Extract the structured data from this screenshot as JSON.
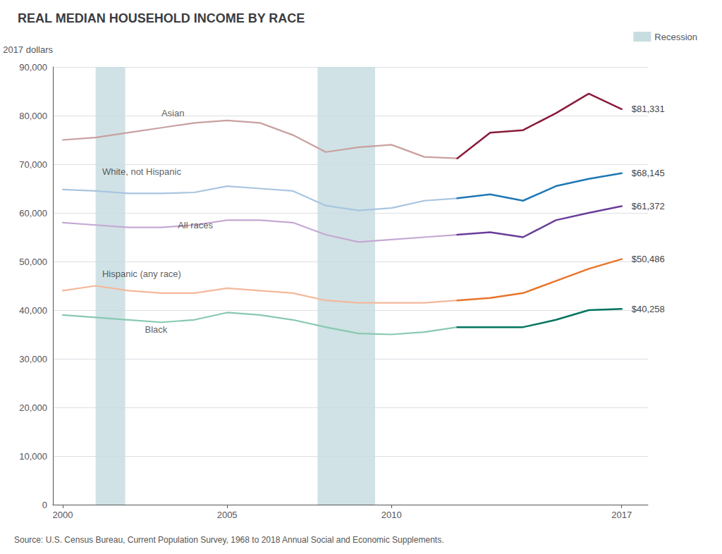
{
  "chart_data": {
    "type": "line",
    "title": "REAL MEDIAN HOUSEHOLD INCOME BY RACE",
    "ylabel": "2017 dollars",
    "source": "Source: U.S. Census Bureau, Current Population Survey, 1968 to 2018 Annual Social and Economic Supplements.",
    "xlim": [
      1999.7,
      2017.8
    ],
    "xticks": [
      2000,
      2005,
      2010,
      2017
    ],
    "ylim": [
      0,
      90000
    ],
    "yticks": [
      0,
      {
        "value": 10000,
        "label": "10,000"
      },
      {
        "value": 20000,
        "label": "20,000"
      },
      {
        "value": 30000,
        "label": "30,000"
      },
      {
        "value": 40000,
        "label": "40,000"
      },
      {
        "value": 50000,
        "label": "50,000"
      },
      {
        "value": 60000,
        "label": "60,000"
      },
      {
        "value": 70000,
        "label": "70,000"
      },
      {
        "value": 80000,
        "label": "80,000"
      },
      {
        "value": 90000,
        "label": "90,000"
      }
    ],
    "grid": true,
    "legend": "upper right",
    "shaded": {
      "label": "Recession",
      "color": "#c8dde0",
      "ranges": [
        [
          2001.0,
          2001.9
        ],
        [
          2007.75,
          2009.5
        ]
      ]
    },
    "series": [
      {
        "name": "Asian",
        "name_x": 2003.0,
        "name_y": 80500,
        "segments": [
          {
            "color": "#c9a0a0",
            "x": [
              2000,
              2001,
              2002,
              2003,
              2004,
              2005,
              2006,
              2007,
              2008,
              2009,
              2010,
              2011,
              2012
            ],
            "values": [
              75000,
              75500,
              76500,
              77500,
              78500,
              79000,
              78500,
              76000,
              72500,
              73500,
              74000,
              71500,
              71200
            ]
          },
          {
            "color": "#8b1a3a",
            "x": [
              2012,
              2013,
              2014,
              2015,
              2016,
              2017
            ],
            "values": [
              71200,
              76500,
              77000,
              80500,
              84500,
              81331
            ],
            "value_labels": [
              null,
              null,
              null,
              null,
              null,
              "$81,331"
            ]
          }
        ]
      },
      {
        "name": "White, not Hispanic",
        "name_x": 2001.2,
        "name_y": 68500,
        "segments": [
          {
            "color": "#a8c5e0",
            "x": [
              2000,
              2001,
              2002,
              2003,
              2004,
              2005,
              2006,
              2007,
              2008,
              2009,
              2010,
              2011,
              2012
            ],
            "values": [
              64800,
              64500,
              64000,
              64000,
              64200,
              65500,
              65000,
              64500,
              61500,
              60500,
              61000,
              62500,
              63000
            ]
          },
          {
            "color": "#1f78b4",
            "x": [
              2012,
              2013,
              2014,
              2015,
              2016,
              2017
            ],
            "values": [
              63000,
              63800,
              62500,
              65500,
              67000,
              68145
            ],
            "value_labels": [
              null,
              null,
              null,
              null,
              null,
              "$68,145"
            ]
          }
        ]
      },
      {
        "name": "All races",
        "name_x": 2003.5,
        "name_y": 57500,
        "segments": [
          {
            "color": "#c5a8d4",
            "x": [
              2000,
              2001,
              2002,
              2003,
              2004,
              2005,
              2006,
              2007,
              2008,
              2009,
              2010,
              2011,
              2012
            ],
            "values": [
              58000,
              57500,
              57000,
              57000,
              57500,
              58500,
              58500,
              58000,
              55500,
              54000,
              54500,
              55000,
              55500
            ]
          },
          {
            "color": "#6a3d9a",
            "x": [
              2012,
              2013,
              2014,
              2015,
              2016,
              2017
            ],
            "values": [
              55500,
              56000,
              55000,
              58500,
              60000,
              61372
            ],
            "value_labels": [
              null,
              null,
              null,
              null,
              null,
              "$61,372"
            ]
          }
        ]
      },
      {
        "name": "Hispanic (any race)",
        "name_x": 2001.2,
        "name_y": 47500,
        "segments": [
          {
            "color": "#f4b89a",
            "x": [
              2000,
              2001,
              2002,
              2003,
              2004,
              2005,
              2006,
              2007,
              2008,
              2009,
              2010,
              2011,
              2012
            ],
            "values": [
              44000,
              45000,
              44000,
              43500,
              43500,
              44500,
              44000,
              43500,
              42000,
              41500,
              41500,
              41500,
              42000
            ]
          },
          {
            "color": "#e8742a",
            "x": [
              2012,
              2013,
              2014,
              2015,
              2016,
              2017
            ],
            "values": [
              42000,
              42500,
              43500,
              46000,
              48500,
              50486
            ],
            "value_labels": [
              null,
              null,
              null,
              null,
              null,
              "$50,486"
            ]
          }
        ]
      },
      {
        "name": "Black",
        "name_x": 2002.5,
        "name_y": 36000,
        "segments": [
          {
            "color": "#88c9b0",
            "x": [
              2000,
              2001,
              2002,
              2003,
              2004,
              2005,
              2006,
              2007,
              2008,
              2009,
              2010,
              2011,
              2012
            ],
            "values": [
              39000,
              38500,
              38000,
              37500,
              38000,
              39500,
              39000,
              38000,
              36500,
              35200,
              35000,
              35500,
              36500
            ]
          },
          {
            "color": "#00755e",
            "x": [
              2012,
              2013,
              2014,
              2015,
              2016,
              2017
            ],
            "values": [
              36500,
              36500,
              36500,
              38000,
              40000,
              40258
            ],
            "value_labels": [
              null,
              null,
              null,
              null,
              null,
              "$40,258"
            ]
          }
        ]
      }
    ]
  }
}
